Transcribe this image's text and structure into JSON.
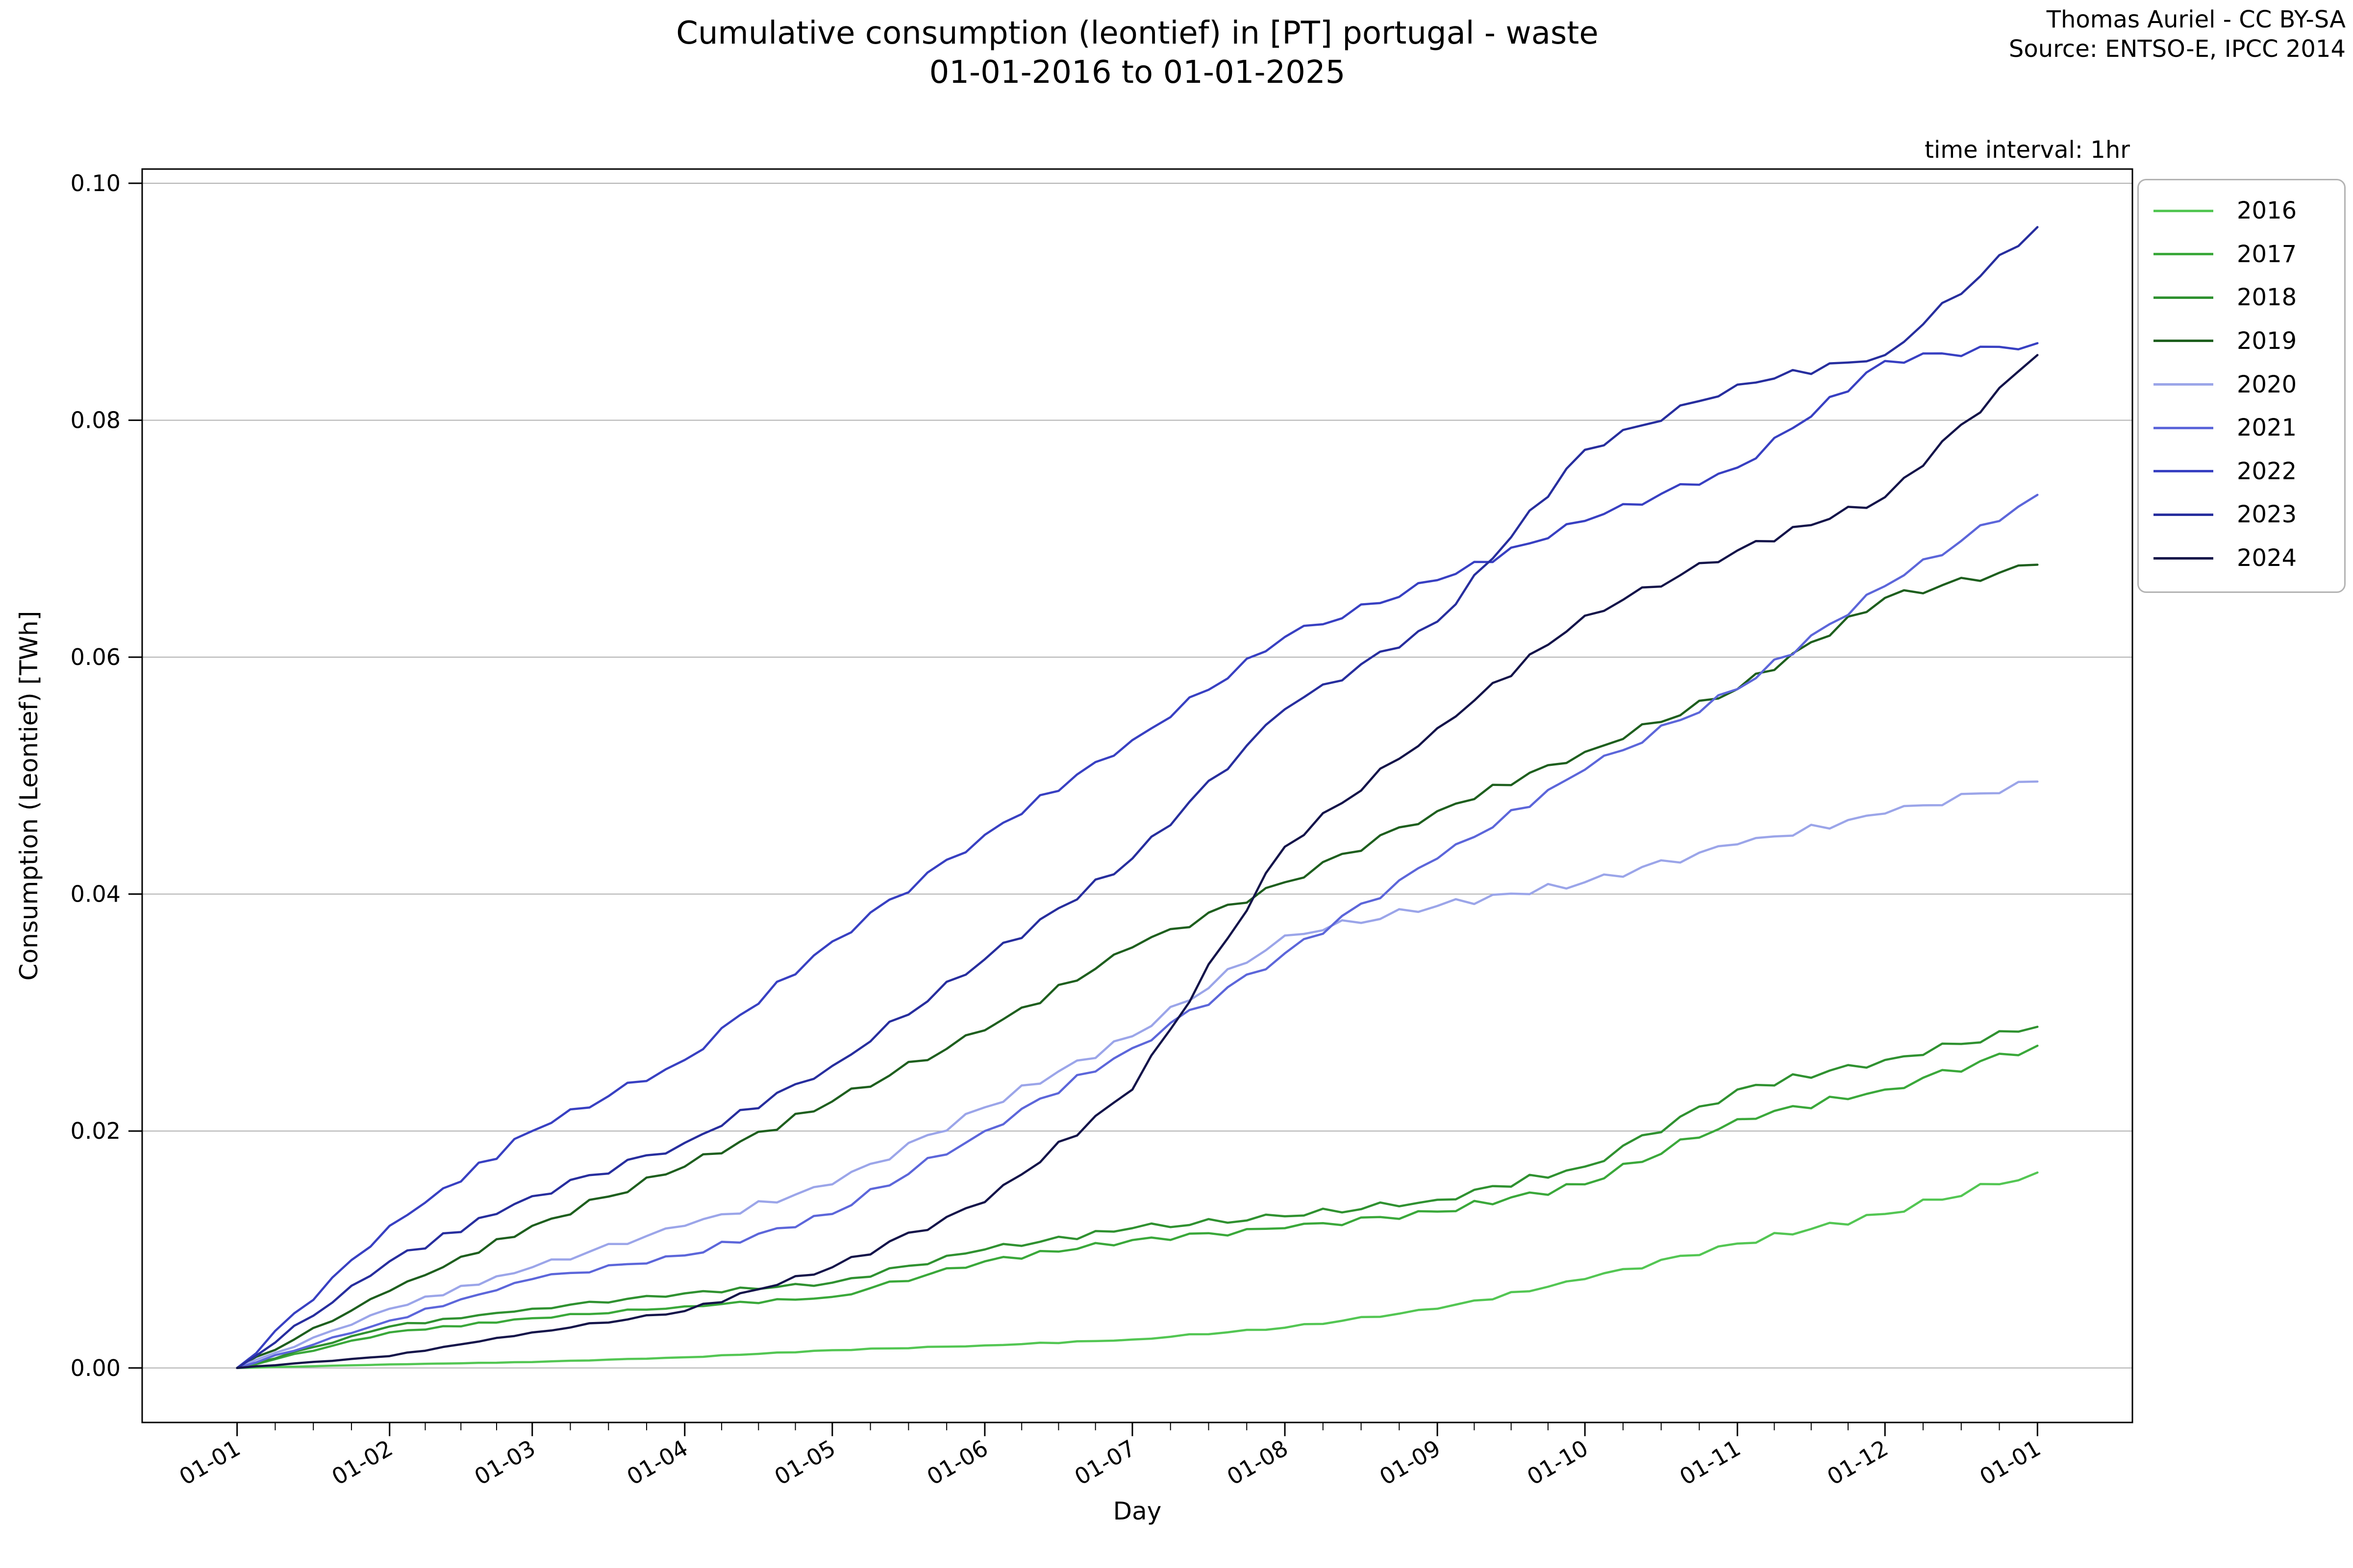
{
  "header": {
    "title_line1": "Cumulative consumption (leontief) in [PT] portugal - waste",
    "title_line2": "01-01-2016 to 01-01-2025",
    "credit_line1": "Thomas Auriel - CC BY-SA",
    "credit_line2": "Source: ENTSO-E, IPCC 2014",
    "time_interval_note": "time interval: 1hr"
  },
  "chart_data": {
    "type": "line",
    "title": "Cumulative consumption (leontief) in [PT] portugal - waste 01-01-2016 to 01-01-2025",
    "xlabel": "Day",
    "ylabel": "Consumption (Leontief) [TWh]",
    "grid": "horizontal",
    "legend_position": "outside-upper-right",
    "x_tick_labels": [
      "01-01",
      "01-02",
      "01-03",
      "01-04",
      "01-05",
      "01-06",
      "01-07",
      "01-08",
      "01-09",
      "01-10",
      "01-11",
      "01-12",
      "01-01"
    ],
    "sample_days": [
      0,
      31,
      60,
      91,
      121,
      152,
      182,
      213,
      244,
      274,
      305,
      335,
      366
    ],
    "xlim_days": [
      -19.3,
      385.3
    ],
    "ylim": [
      -0.0046,
      0.1012
    ],
    "y_tick_values": [
      0.0,
      0.02,
      0.04,
      0.06,
      0.08,
      0.1
    ],
    "y_tick_labels": [
      "0.00",
      "0.02",
      "0.04",
      "0.06",
      "0.08",
      "0.10"
    ],
    "x_minor_ticks_per_interval": 3,
    "colors": {
      "grid": "#b0b0b0",
      "spine": "#000000",
      "legend_border": "#b3b3b3"
    },
    "series": [
      {
        "name": "2016",
        "color": "#53c653",
        "values": [
          0,
          0.0003,
          0.0005,
          0.0009,
          0.0015,
          0.0019,
          0.0024,
          0.0034,
          0.005,
          0.0075,
          0.0105,
          0.013,
          0.0165
        ]
      },
      {
        "name": "2017",
        "color": "#3aa83a",
        "values": [
          0,
          0.003,
          0.0042,
          0.0052,
          0.006,
          0.009,
          0.0108,
          0.0118,
          0.0132,
          0.0155,
          0.021,
          0.0235,
          0.0272
        ]
      },
      {
        "name": "2018",
        "color": "#2f9130",
        "values": [
          0,
          0.0035,
          0.005,
          0.0063,
          0.0072,
          0.01,
          0.0118,
          0.0128,
          0.0142,
          0.017,
          0.0235,
          0.026,
          0.0288
        ]
      },
      {
        "name": "2019",
        "color": "#1e5f1e",
        "values": [
          0,
          0.0065,
          0.012,
          0.017,
          0.0225,
          0.0285,
          0.0355,
          0.041,
          0.047,
          0.052,
          0.0573,
          0.065,
          0.0678
        ]
      },
      {
        "name": "2020",
        "color": "#9ba5e9",
        "values": [
          0,
          0.005,
          0.0085,
          0.012,
          0.0155,
          0.022,
          0.028,
          0.0365,
          0.039,
          0.041,
          0.0442,
          0.0468,
          0.0495
        ]
      },
      {
        "name": "2021",
        "color": "#5c66da",
        "values": [
          0,
          0.004,
          0.0075,
          0.0095,
          0.013,
          0.02,
          0.027,
          0.035,
          0.043,
          0.0505,
          0.0573,
          0.066,
          0.0737
        ]
      },
      {
        "name": "2022",
        "color": "#3840c2",
        "values": [
          0,
          0.012,
          0.02,
          0.026,
          0.036,
          0.045,
          0.053,
          0.0617,
          0.0665,
          0.0715,
          0.076,
          0.085,
          0.0865
        ]
      },
      {
        "name": "2023",
        "color": "#272e9e",
        "values": [
          0,
          0.009,
          0.0145,
          0.019,
          0.0255,
          0.0345,
          0.043,
          0.0556,
          0.063,
          0.0775,
          0.083,
          0.0855,
          0.0963
        ]
      },
      {
        "name": "2024",
        "color": "#14144a",
        "values": [
          0,
          0.001,
          0.003,
          0.0048,
          0.0085,
          0.014,
          0.0235,
          0.044,
          0.054,
          0.0635,
          0.069,
          0.0735,
          0.0855
        ]
      }
    ]
  }
}
